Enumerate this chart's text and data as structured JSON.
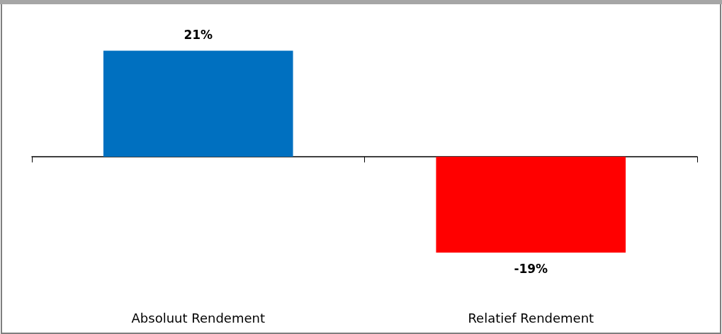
{
  "chart_data": {
    "type": "bar",
    "categories": [
      "Absoluut Rendement",
      "Relatief Rendement"
    ],
    "values": [
      21,
      -19
    ],
    "colors": [
      "#0070c0",
      "#ff0000"
    ],
    "value_labels": [
      "21%",
      "-19%"
    ]
  }
}
